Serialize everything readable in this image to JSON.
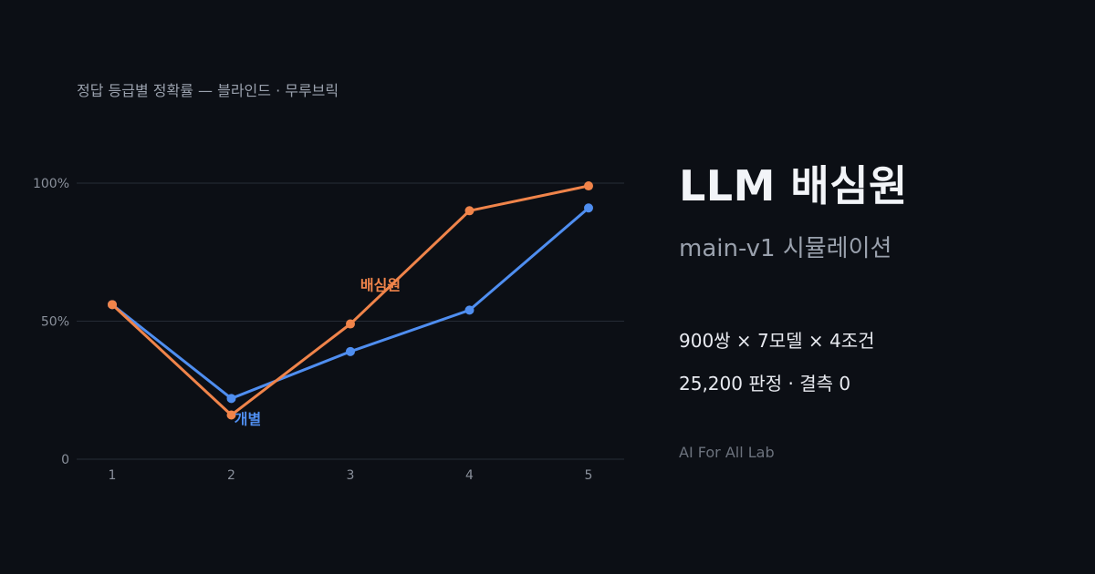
{
  "chart_data": {
    "type": "line",
    "title": "정답 등급별 정확률 — 블라인드 · 무루브릭",
    "x": [
      1,
      2,
      3,
      4,
      5
    ],
    "x_tick_labels": [
      "1",
      "2",
      "3",
      "4",
      "5"
    ],
    "ylim": [
      0,
      100
    ],
    "y_ticks": [
      0,
      50,
      100
    ],
    "y_tick_labels": [
      "0",
      "50%",
      "100%"
    ],
    "grid": true,
    "series": [
      {
        "name": "개별",
        "color": "#4f8ef0",
        "values": [
          56,
          22,
          39,
          54,
          91
        ]
      },
      {
        "name": "배심원",
        "color": "#f0844a",
        "values": [
          56,
          16,
          49,
          90,
          99
        ]
      }
    ]
  },
  "panel": {
    "headline": "LLM 배심원",
    "subhead": "main-v1 시뮬레이션",
    "stat_line_1": "900쌍 × 7모델 × 4조건",
    "stat_line_2": "25,200 판정 · 결측 0",
    "footer": "AI For All Lab"
  },
  "colors": {
    "background": "#0c0f15",
    "grid": "#262c36",
    "text_muted": "#9aa1ad"
  }
}
